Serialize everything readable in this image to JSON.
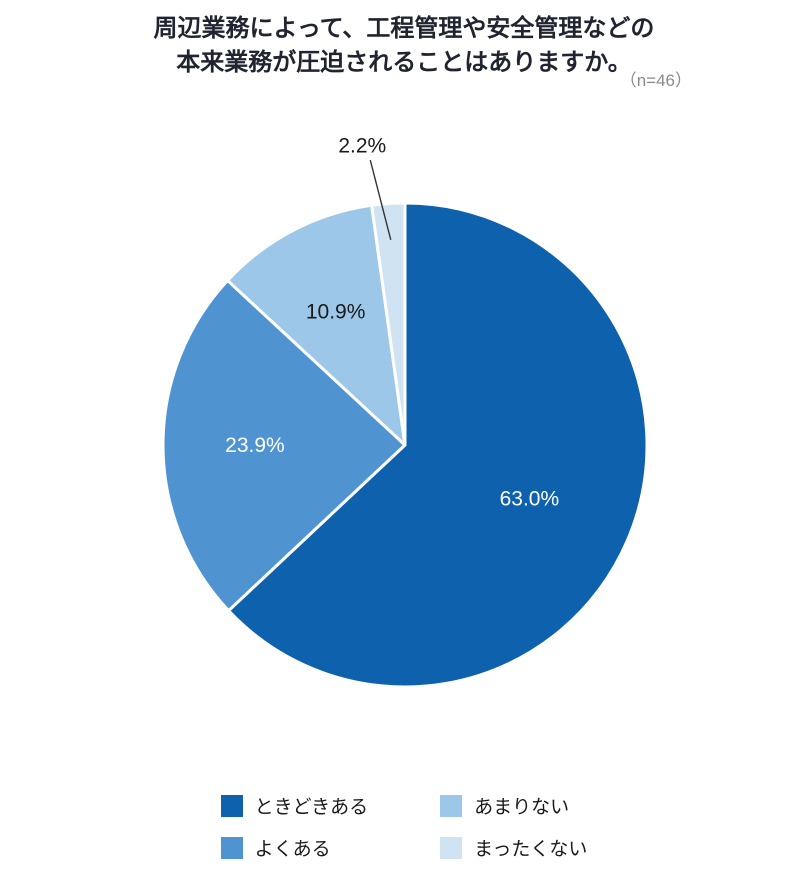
{
  "title": {
    "line1": "周辺業務によって、工程管理や安全管理などの",
    "line2": "本来業務が圧迫されることはありますか。",
    "sample": "（n=46）"
  },
  "chart_data": {
    "type": "pie",
    "title": "周辺業務によって、工程管理や安全管理などの本来業務が圧迫されることはありますか。",
    "sample_size": "（n=46）",
    "start_angle_deg": 0,
    "direction": "clockwise",
    "total": 100.0,
    "slices": [
      {
        "label": "ときどきある",
        "value": 63.0,
        "display": "63.0%",
        "color": "#0e61ad",
        "label_color": "#ffffff",
        "label_inside": true
      },
      {
        "label": "よくある",
        "value": 23.9,
        "display": "23.9%",
        "color": "#4f94d1",
        "label_color": "#ffffff",
        "label_inside": true
      },
      {
        "label": "あまりない",
        "value": 10.9,
        "display": "10.9%",
        "color": "#9cc7e8",
        "label_color": "#1a1a1a",
        "label_inside": true
      },
      {
        "label": "まったくない",
        "value": 2.2,
        "display": "2.2%",
        "color": "#cfe3f3",
        "label_color": "#1a1a1a",
        "label_inside": false
      }
    ],
    "legend": [
      "ときどきある",
      "よくある",
      "あまりない",
      "まったくない"
    ],
    "legend_position": "bottom",
    "legend_columns": 2,
    "leader_line_color": "#333333"
  }
}
